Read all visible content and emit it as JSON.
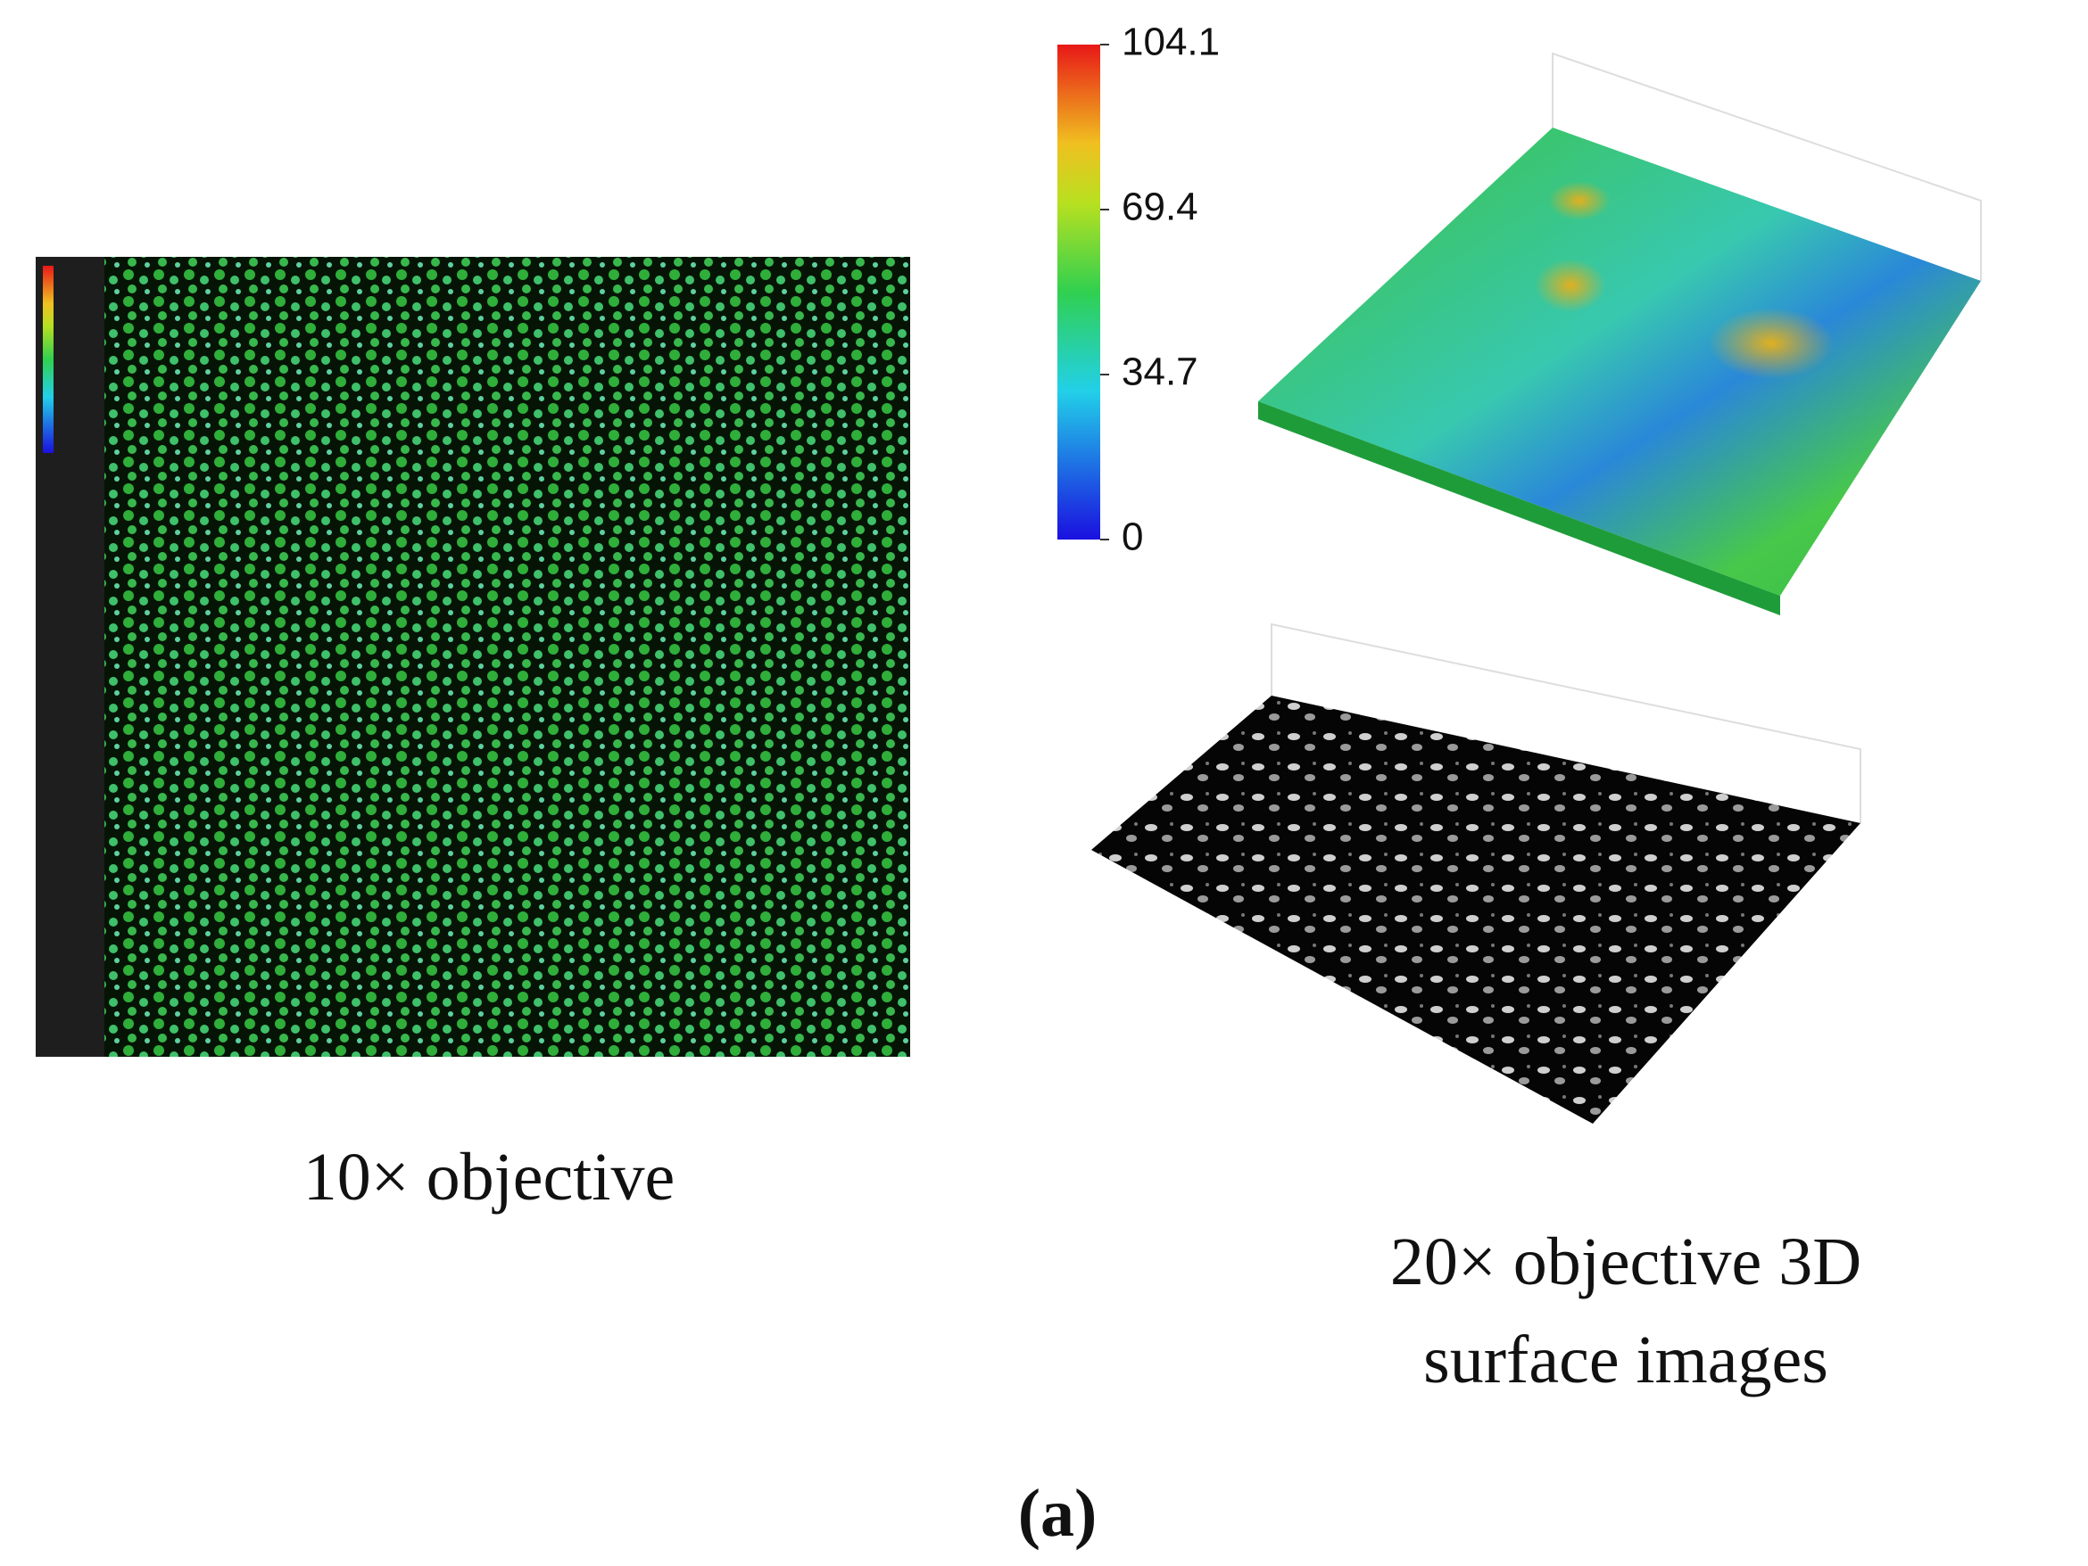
{
  "left_caption": "10× objective",
  "right_caption": [
    "20× objective 3D",
    "surface images"
  ],
  "panel_label": "(a)",
  "colorbar": {
    "lim": [
      0,
      104.1
    ],
    "ticks": [
      0,
      34.7,
      69.4,
      104.1
    ]
  }
}
